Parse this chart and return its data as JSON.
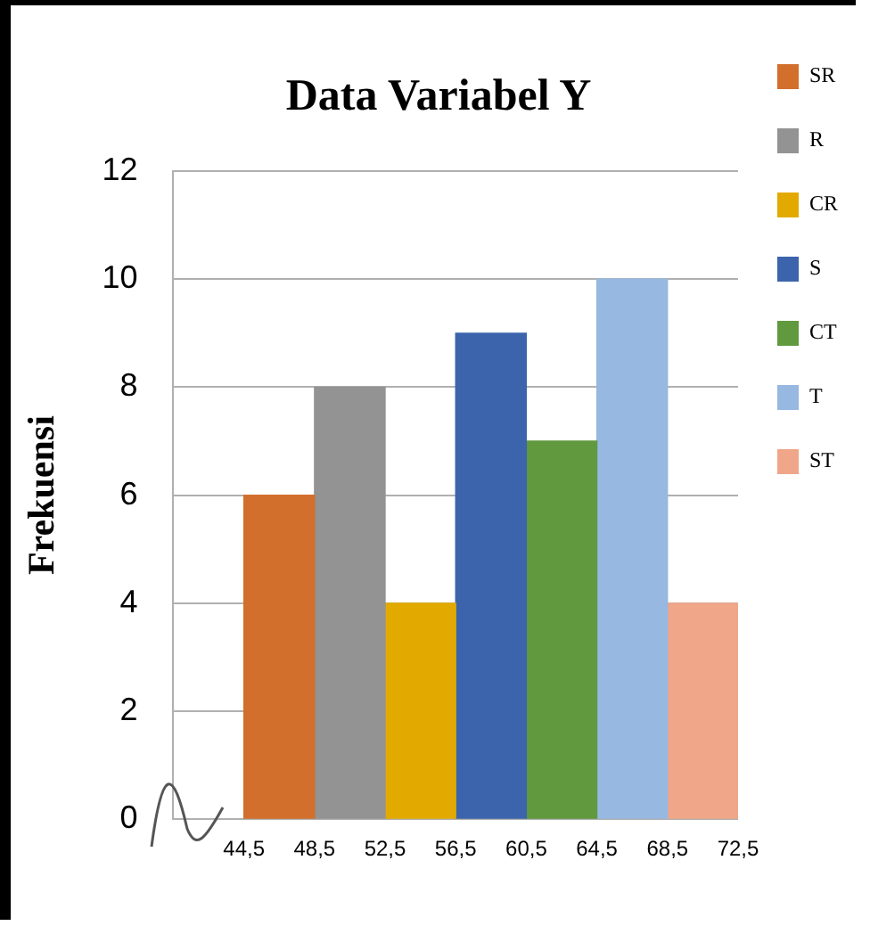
{
  "chart_data": {
    "type": "histogram",
    "title": "Data Variabel Y",
    "ylabel": "Frekuensi",
    "bins": [
      44.5,
      48.5,
      52.5,
      56.5,
      60.5,
      64.5,
      68.5,
      72.5
    ],
    "series": [
      {
        "name": "SR",
        "color": "#d26f2c",
        "values": [
          6,
          null,
          null,
          null,
          null,
          null,
          null
        ]
      },
      {
        "name": "R",
        "color": "#939393",
        "values": [
          null,
          8,
          null,
          null,
          null,
          null,
          null
        ]
      },
      {
        "name": "CR",
        "color": "#e2aa00",
        "values": [
          null,
          null,
          4,
          null,
          null,
          null,
          null
        ]
      },
      {
        "name": "S",
        "color": "#3c64ac",
        "values": [
          null,
          null,
          null,
          9,
          null,
          null,
          null
        ]
      },
      {
        "name": "CT",
        "color": "#61993e",
        "values": [
          null,
          null,
          null,
          null,
          7,
          null,
          null
        ]
      },
      {
        "name": "T",
        "color": "#97b8e0",
        "values": [
          null,
          null,
          null,
          null,
          null,
          10,
          null
        ]
      },
      {
        "name": "ST",
        "color": "#f0a688",
        "values": [
          null,
          null,
          null,
          null,
          null,
          null,
          4
        ]
      }
    ],
    "xlim": [
      40.5,
      72.5
    ],
    "xticks": [
      {
        "value": 44.5,
        "label": "44,5"
      },
      {
        "value": 48.5,
        "label": "48,5"
      },
      {
        "value": 52.5,
        "label": "52,5"
      },
      {
        "value": 56.5,
        "label": "56,5"
      },
      {
        "value": 60.5,
        "label": "60,5"
      },
      {
        "value": 64.5,
        "label": "64,5"
      },
      {
        "value": 68.5,
        "label": "68,5"
      },
      {
        "value": 72.5,
        "label": "72,5"
      }
    ],
    "ylim": [
      0,
      12
    ],
    "yticks": [
      0,
      2,
      4,
      6,
      8,
      10,
      12
    ],
    "grid": "y",
    "legend": "right"
  }
}
